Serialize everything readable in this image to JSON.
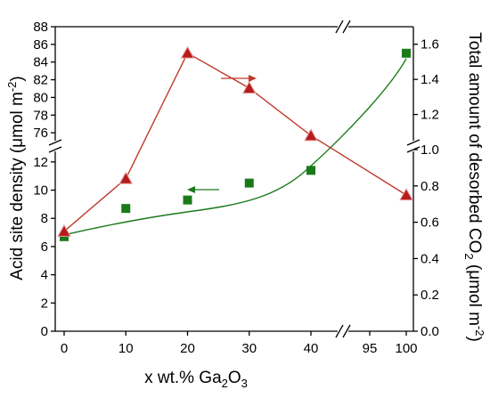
{
  "chart_data": {
    "type": "scatter",
    "xlabel": {
      "prefix": "x wt.% Ga",
      "sub": "2",
      "mid": "O",
      "sub2": "3"
    },
    "ylabel_left": {
      "text": "Acid site density (μmol m",
      "sup": "-2",
      "end": ")"
    },
    "ylabel_right": {
      "text": "Total amount of desorbed CO",
      "sub": "2",
      "mid": " (μmol m",
      "sup": "-2",
      "end": ")"
    },
    "x_ticks": [
      "0",
      "10",
      "20",
      "30",
      "40",
      "95",
      "100"
    ],
    "x_tick_values": [
      0,
      10,
      20,
      30,
      40,
      95,
      100
    ],
    "x_axis_break": [
      40,
      95
    ],
    "left_axis": {
      "lower_range": [
        0,
        13
      ],
      "lower_ticks": [
        "0",
        "2",
        "4",
        "6",
        "8",
        "10",
        "12"
      ],
      "upper_range": [
        74.5,
        88
      ],
      "upper_ticks": [
        "76",
        "78",
        "80",
        "82",
        "84",
        "86",
        "88"
      ]
    },
    "right_axis": {
      "lower_range": [
        0,
        1.0
      ],
      "lower_ticks": [
        "0.0",
        "0.2",
        "0.4",
        "0.6",
        "0.8",
        "1.0"
      ],
      "upper_range": [
        1.0,
        1.7
      ],
      "upper_ticks": [
        "1.2",
        "1.4",
        "1.6"
      ]
    },
    "series": [
      {
        "axis": "left",
        "marker": "square",
        "color": "#1a7a1a",
        "x": [
          0,
          10,
          20,
          30,
          40,
          100
        ],
        "y": [
          6.7,
          8.7,
          9.3,
          10.5,
          11.4,
          85.0
        ],
        "fit_line": true
      },
      {
        "axis": "right",
        "marker": "triangle",
        "color": "#b71c1c",
        "line_color": "#c0392b",
        "x": [
          0,
          10,
          20,
          30,
          40,
          100
        ],
        "y": [
          0.55,
          0.84,
          1.55,
          1.35,
          1.08,
          0.75
        ]
      }
    ]
  }
}
